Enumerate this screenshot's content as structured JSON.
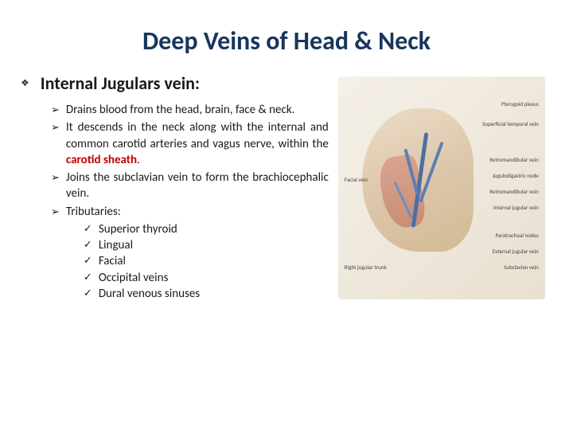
{
  "title": "Deep Veins of Head & Neck",
  "subtitle": "Internal Jugulars vein:",
  "bullets": [
    {
      "text": "Drains blood from the head, brain, face & neck."
    },
    {
      "text": "It descends in the neck along with the internal and common carotid arteries and vagus nerve, within the ",
      "highlight": "carotid sheath",
      "suffix": "."
    },
    {
      "text": "Joins the subclavian vein to form the brachiocephalic vein."
    },
    {
      "text": "Tributaries:",
      "subitems": [
        "Superior thyroid",
        "Lingual",
        "Facial",
        "Occipital veins",
        "Dural venous sinuses"
      ]
    }
  ],
  "image_labels": {
    "l1": "Pterygoid plexus",
    "l2": "Superficial temporal vein",
    "l3": "Retromandibular vein",
    "l4": "Jugulodigastric node",
    "l5": "Retromandibular vein",
    "l6": "Internal jugular vein",
    "l7": "Paratracheal nodes",
    "l8": "External jugular vein",
    "l9": "Subclavian vein",
    "l10": "Facial vein",
    "l11": "Right jugular trunk"
  },
  "colors": {
    "title": "#17365d",
    "highlight": "#c00000",
    "text": "#1a1a1a",
    "vein": "#4a6fa5"
  }
}
